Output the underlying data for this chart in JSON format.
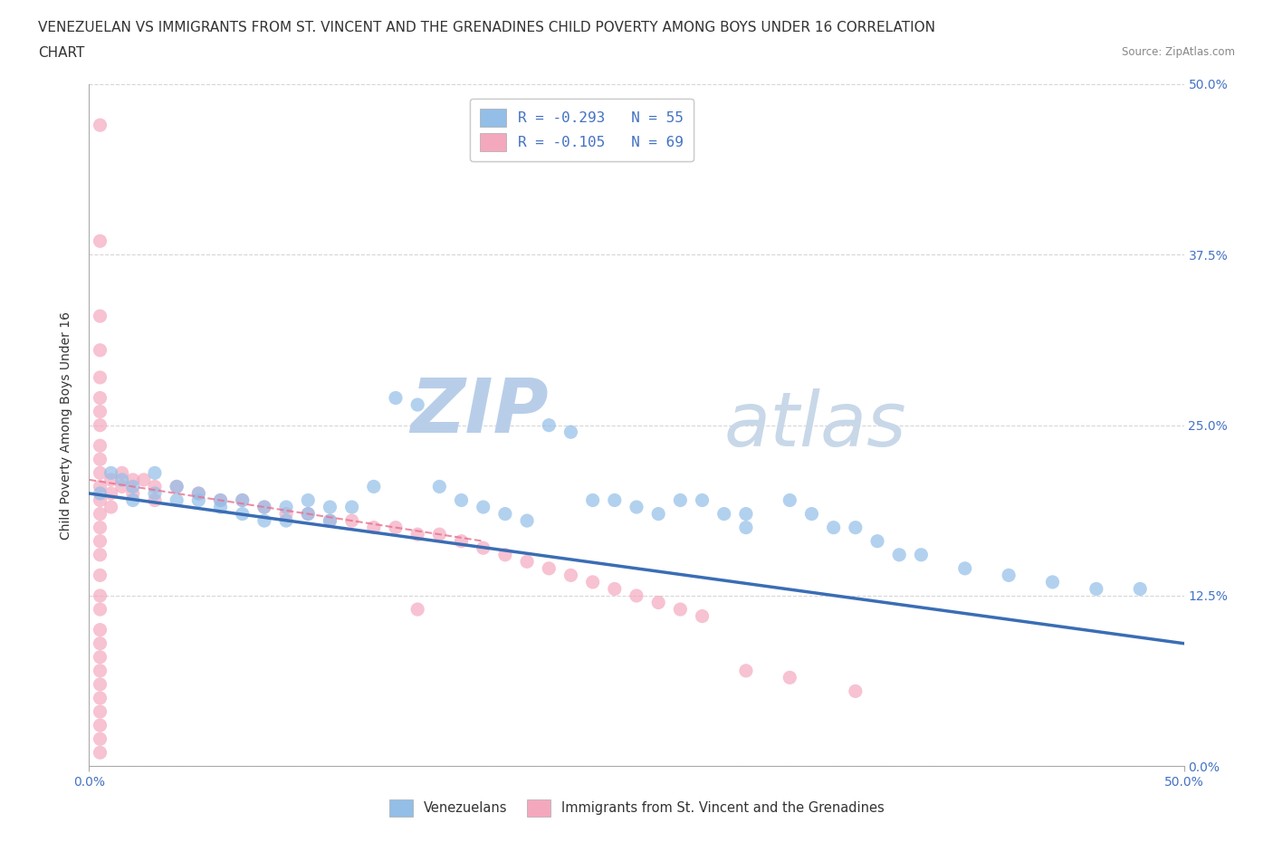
{
  "title_line1": "VENEZUELAN VS IMMIGRANTS FROM ST. VINCENT AND THE GRENADINES CHILD POVERTY AMONG BOYS UNDER 16 CORRELATION",
  "title_line2": "CHART",
  "source": "Source: ZipAtlas.com",
  "ylabel": "Child Poverty Among Boys Under 16",
  "xlim": [
    0.0,
    0.5
  ],
  "ylim": [
    0.0,
    0.5
  ],
  "yticks": [
    0.0,
    0.125,
    0.25,
    0.375,
    0.5
  ],
  "ytick_labels": [
    "0.0%",
    "12.5%",
    "25.0%",
    "37.5%",
    "50.0%"
  ],
  "watermark_zip": "ZIP",
  "watermark_atlas": "atlas",
  "blue_R": "-0.293",
  "blue_N": "55",
  "pink_R": "-0.105",
  "pink_N": "69",
  "blue_color": "#92BEE8",
  "pink_color": "#F4A8BE",
  "blue_scatter": [
    [
      0.005,
      0.2
    ],
    [
      0.01,
      0.215
    ],
    [
      0.015,
      0.21
    ],
    [
      0.02,
      0.205
    ],
    [
      0.02,
      0.195
    ],
    [
      0.03,
      0.2
    ],
    [
      0.03,
      0.215
    ],
    [
      0.04,
      0.205
    ],
    [
      0.04,
      0.195
    ],
    [
      0.05,
      0.2
    ],
    [
      0.05,
      0.195
    ],
    [
      0.06,
      0.195
    ],
    [
      0.06,
      0.19
    ],
    [
      0.07,
      0.195
    ],
    [
      0.07,
      0.185
    ],
    [
      0.08,
      0.19
    ],
    [
      0.08,
      0.18
    ],
    [
      0.09,
      0.19
    ],
    [
      0.09,
      0.18
    ],
    [
      0.1,
      0.185
    ],
    [
      0.1,
      0.195
    ],
    [
      0.11,
      0.19
    ],
    [
      0.11,
      0.18
    ],
    [
      0.12,
      0.19
    ],
    [
      0.13,
      0.205
    ],
    [
      0.14,
      0.27
    ],
    [
      0.15,
      0.265
    ],
    [
      0.16,
      0.205
    ],
    [
      0.17,
      0.195
    ],
    [
      0.18,
      0.19
    ],
    [
      0.19,
      0.185
    ],
    [
      0.2,
      0.18
    ],
    [
      0.21,
      0.25
    ],
    [
      0.22,
      0.245
    ],
    [
      0.23,
      0.195
    ],
    [
      0.24,
      0.195
    ],
    [
      0.25,
      0.19
    ],
    [
      0.26,
      0.185
    ],
    [
      0.27,
      0.195
    ],
    [
      0.28,
      0.195
    ],
    [
      0.29,
      0.185
    ],
    [
      0.3,
      0.185
    ],
    [
      0.3,
      0.175
    ],
    [
      0.32,
      0.195
    ],
    [
      0.33,
      0.185
    ],
    [
      0.34,
      0.175
    ],
    [
      0.35,
      0.175
    ],
    [
      0.36,
      0.165
    ],
    [
      0.37,
      0.155
    ],
    [
      0.38,
      0.155
    ],
    [
      0.4,
      0.145
    ],
    [
      0.42,
      0.14
    ],
    [
      0.44,
      0.135
    ],
    [
      0.46,
      0.13
    ],
    [
      0.48,
      0.13
    ]
  ],
  "pink_scatter": [
    [
      0.005,
      0.47
    ],
    [
      0.005,
      0.385
    ],
    [
      0.005,
      0.33
    ],
    [
      0.005,
      0.305
    ],
    [
      0.005,
      0.285
    ],
    [
      0.005,
      0.27
    ],
    [
      0.005,
      0.26
    ],
    [
      0.005,
      0.25
    ],
    [
      0.005,
      0.235
    ],
    [
      0.005,
      0.225
    ],
    [
      0.005,
      0.215
    ],
    [
      0.005,
      0.205
    ],
    [
      0.005,
      0.195
    ],
    [
      0.005,
      0.185
    ],
    [
      0.005,
      0.175
    ],
    [
      0.005,
      0.165
    ],
    [
      0.005,
      0.155
    ],
    [
      0.005,
      0.14
    ],
    [
      0.005,
      0.125
    ],
    [
      0.005,
      0.115
    ],
    [
      0.005,
      0.1
    ],
    [
      0.005,
      0.09
    ],
    [
      0.005,
      0.08
    ],
    [
      0.005,
      0.07
    ],
    [
      0.005,
      0.06
    ],
    [
      0.005,
      0.05
    ],
    [
      0.005,
      0.04
    ],
    [
      0.005,
      0.03
    ],
    [
      0.005,
      0.02
    ],
    [
      0.005,
      0.01
    ],
    [
      0.01,
      0.21
    ],
    [
      0.01,
      0.2
    ],
    [
      0.01,
      0.19
    ],
    [
      0.015,
      0.215
    ],
    [
      0.015,
      0.205
    ],
    [
      0.02,
      0.21
    ],
    [
      0.02,
      0.2
    ],
    [
      0.025,
      0.21
    ],
    [
      0.03,
      0.205
    ],
    [
      0.03,
      0.195
    ],
    [
      0.04,
      0.205
    ],
    [
      0.05,
      0.2
    ],
    [
      0.06,
      0.195
    ],
    [
      0.07,
      0.195
    ],
    [
      0.08,
      0.19
    ],
    [
      0.09,
      0.185
    ],
    [
      0.1,
      0.185
    ],
    [
      0.11,
      0.18
    ],
    [
      0.12,
      0.18
    ],
    [
      0.13,
      0.175
    ],
    [
      0.14,
      0.175
    ],
    [
      0.15,
      0.17
    ],
    [
      0.16,
      0.17
    ],
    [
      0.17,
      0.165
    ],
    [
      0.18,
      0.16
    ],
    [
      0.19,
      0.155
    ],
    [
      0.2,
      0.15
    ],
    [
      0.21,
      0.145
    ],
    [
      0.22,
      0.14
    ],
    [
      0.23,
      0.135
    ],
    [
      0.24,
      0.13
    ],
    [
      0.25,
      0.125
    ],
    [
      0.26,
      0.12
    ],
    [
      0.27,
      0.115
    ],
    [
      0.28,
      0.11
    ],
    [
      0.3,
      0.07
    ],
    [
      0.32,
      0.065
    ],
    [
      0.35,
      0.055
    ],
    [
      0.15,
      0.115
    ]
  ],
  "blue_trendline": [
    [
      0.0,
      0.2
    ],
    [
      0.5,
      0.09
    ]
  ],
  "pink_trendline": [
    [
      0.0,
      0.21
    ],
    [
      0.18,
      0.165
    ]
  ],
  "grid_color": "#CCCCCC",
  "background_color": "#FFFFFF",
  "text_color_dark": "#333333",
  "text_color_blue": "#4472C4",
  "title_fontsize": 11,
  "axis_label_fontsize": 10,
  "tick_fontsize": 10,
  "legend_label_blue": "R = -0.293   N = 55",
  "legend_label_pink": "R = -0.105   N = 69",
  "legend_bottom_blue": "Venezuelans",
  "legend_bottom_pink": "Immigrants from St. Vincent and the Grenadines"
}
